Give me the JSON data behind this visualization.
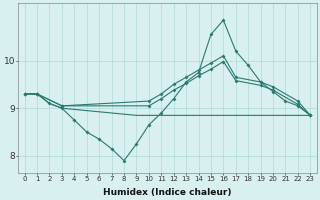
{
  "x_full": [
    0,
    1,
    2,
    3,
    4,
    5,
    6,
    7,
    8,
    9,
    10,
    11,
    12,
    13,
    14,
    15,
    16,
    17,
    18,
    19,
    20,
    21,
    22,
    23
  ],
  "line_zigzag": {
    "x": [
      0,
      1,
      2,
      3,
      4,
      5,
      6,
      7,
      8,
      9,
      10,
      11,
      12,
      13,
      14,
      15,
      16,
      17,
      18,
      19,
      20,
      21,
      22,
      23
    ],
    "y": [
      9.3,
      9.3,
      9.1,
      9.0,
      8.75,
      8.5,
      8.35,
      8.15,
      7.9,
      8.25,
      8.65,
      8.9,
      9.2,
      9.55,
      9.75,
      10.55,
      10.85,
      10.2,
      9.9,
      9.55,
      9.35,
      9.15,
      9.05,
      8.85
    ]
  },
  "line_flat": {
    "x": [
      0,
      1,
      2,
      3,
      9,
      10,
      11,
      12,
      13,
      14,
      15,
      16,
      17,
      18,
      19,
      20,
      21,
      22,
      23
    ],
    "y": [
      9.3,
      9.3,
      9.1,
      9.0,
      8.85,
      8.85,
      8.85,
      8.85,
      8.85,
      8.85,
      8.85,
      8.85,
      8.85,
      8.85,
      8.85,
      8.85,
      8.85,
      8.85,
      8.85
    ]
  },
  "line_upper1": {
    "x": [
      0,
      1,
      3,
      10,
      11,
      12,
      13,
      14,
      15,
      16,
      17,
      19,
      20,
      22,
      23
    ],
    "y": [
      9.3,
      9.3,
      9.05,
      9.15,
      9.3,
      9.5,
      9.65,
      9.8,
      9.95,
      10.1,
      9.65,
      9.55,
      9.45,
      9.15,
      8.85
    ]
  },
  "line_upper2": {
    "x": [
      0,
      1,
      3,
      10,
      11,
      12,
      13,
      14,
      15,
      16,
      17,
      19,
      20,
      22,
      23
    ],
    "y": [
      9.3,
      9.3,
      9.05,
      9.05,
      9.2,
      9.38,
      9.52,
      9.68,
      9.82,
      9.98,
      9.58,
      9.48,
      9.38,
      9.08,
      8.85
    ]
  },
  "xlabel": "Humidex (Indice chaleur)",
  "ylim": [
    7.65,
    11.2
  ],
  "yticks": [
    8,
    9,
    10
  ],
  "xtick_labels": [
    "0",
    "1",
    "2",
    "3",
    "4",
    "5",
    "6",
    "7",
    "8",
    "9",
    "10",
    "11",
    "12",
    "13",
    "14",
    "15",
    "16",
    "17",
    "18",
    "19",
    "20",
    "21",
    "22",
    "23"
  ],
  "line_color": "#2a7a6f",
  "bg_color": "#d8f0f0",
  "grid_color": "#b0d8d8",
  "figsize": [
    3.2,
    2.0
  ],
  "dpi": 100
}
